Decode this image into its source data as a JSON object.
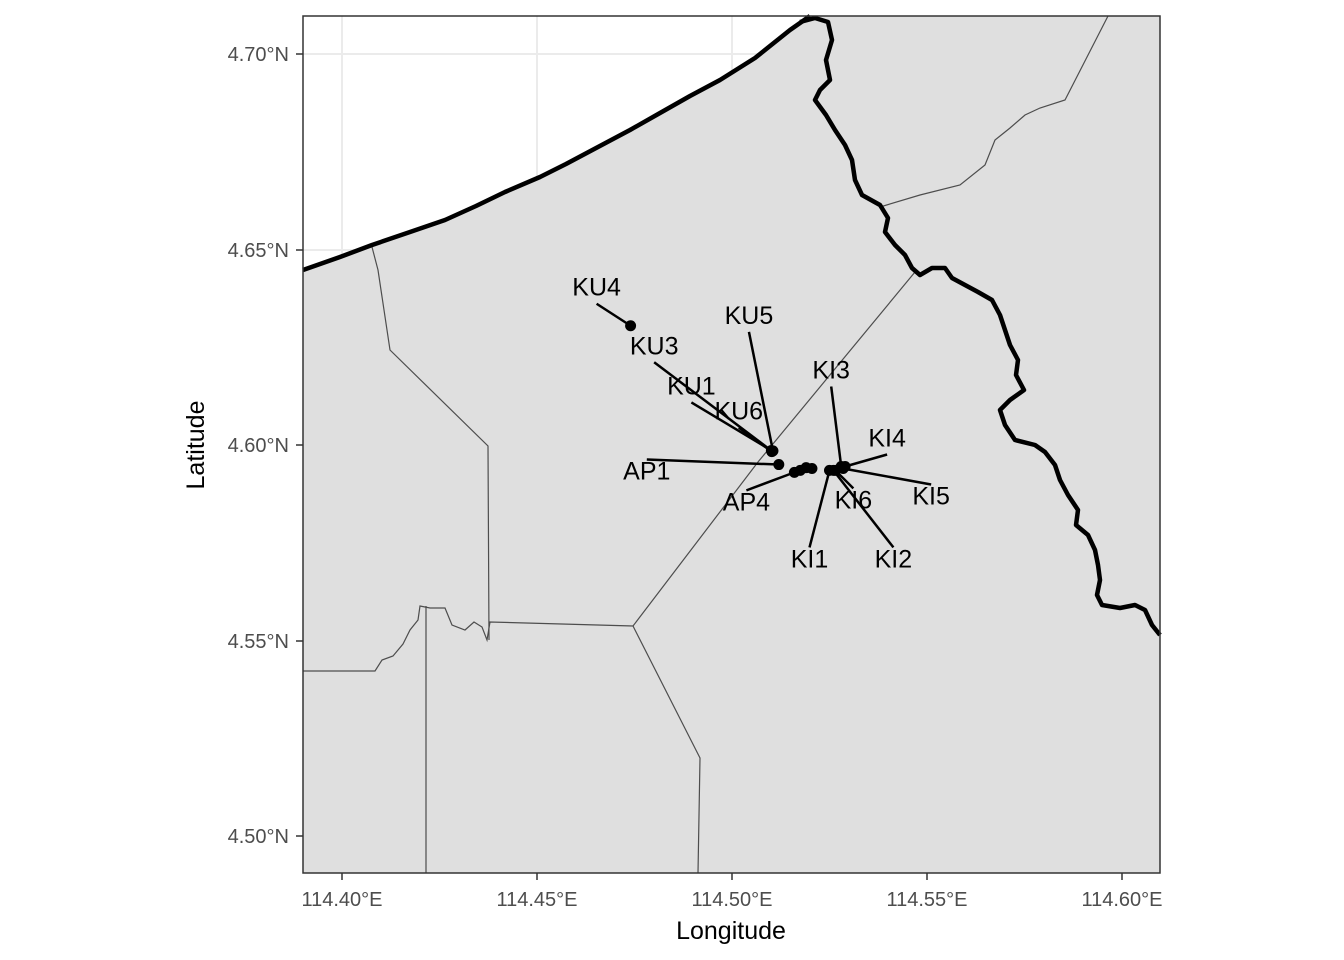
{
  "x_axis": {
    "title": "Longitude",
    "tick_labels": [
      "114.40°E",
      "114.45°E",
      "114.50°E",
      "114.55°E",
      "114.60°E"
    ]
  },
  "y_axis": {
    "title": "Latitude",
    "tick_labels": [
      "4.70°N",
      "4.65°N",
      "4.60°N",
      "4.55°N",
      "4.50°N"
    ]
  },
  "sites": [
    {
      "label": "KU4",
      "lon": 114.474,
      "lat": 4.6305
    },
    {
      "label": "KU5",
      "lon": 114.5105,
      "lat": 4.5985
    },
    {
      "label": "KU3",
      "lon": 114.5103,
      "lat": 4.5984
    },
    {
      "label": "KU1",
      "lon": 114.5101,
      "lat": 4.5986
    },
    {
      "label": "KU6",
      "lon": 114.5102,
      "lat": 4.5983
    },
    {
      "label": "AP1",
      "lon": 114.512,
      "lat": 4.595
    },
    {
      "label": "AP4",
      "lon": 114.516,
      "lat": 4.593
    },
    {
      "label": "KI3",
      "lon": 114.528,
      "lat": 4.5945
    },
    {
      "label": "KI4",
      "lon": 114.529,
      "lat": 4.5945
    },
    {
      "label": "KI5",
      "lon": 114.5285,
      "lat": 4.594
    },
    {
      "label": "KI6",
      "lon": 114.5265,
      "lat": 4.5935
    },
    {
      "label": "KI1",
      "lon": 114.525,
      "lat": 4.5935
    },
    {
      "label": "KI2",
      "lon": 114.526,
      "lat": 4.5935
    }
  ],
  "extra_points": [
    {
      "lon": 114.5175,
      "lat": 4.5935
    },
    {
      "lon": 114.519,
      "lat": 4.5942
    },
    {
      "lon": 114.5205,
      "lat": 4.594
    }
  ],
  "colors": {
    "panel": "#dfdfdf",
    "sea": "#ffffff",
    "grid": "#ebebeb",
    "thick_border": "#000000",
    "thin_border": "#4d4d4d"
  }
}
